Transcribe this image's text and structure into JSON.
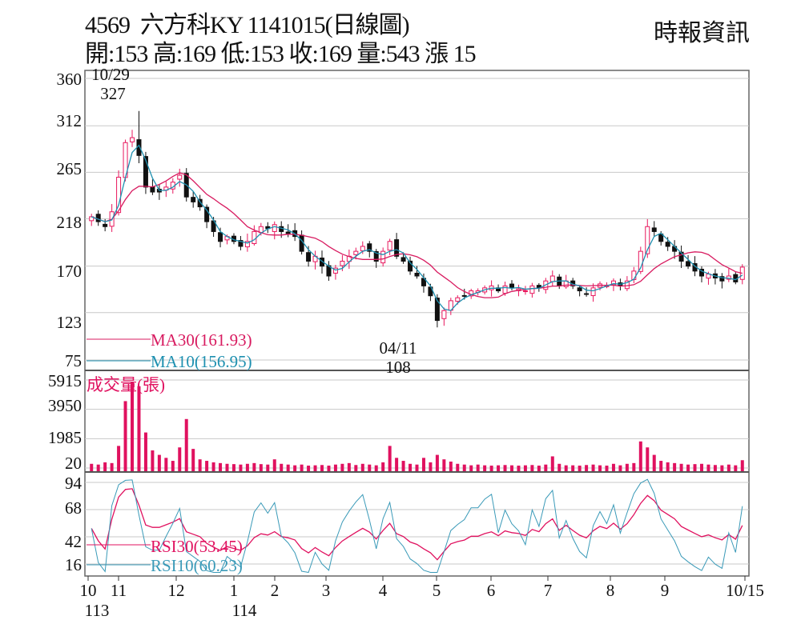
{
  "header": {
    "title": "4569  六方科KY 1141015(日線圖)",
    "ohlc": "開:153 高:169 低:153 收:169 量:543 漲 15",
    "brand": "時報資訊"
  },
  "colors": {
    "up": "#e8175d",
    "down": "#111111",
    "ma30": "#d81b60",
    "ma10": "#1e90b0",
    "volume": "#e0115f",
    "rsi30": "#e0115f",
    "rsi10": "#3a9ab8",
    "grid": "#c8c8c8"
  },
  "chart_data": [
    {
      "type": "candlestick",
      "panel": "price",
      "yticks": [
        "360",
        "312",
        "265",
        "218",
        "170",
        "123",
        "75"
      ],
      "ylim": [
        75,
        360
      ],
      "annotations": {
        "high": {
          "date": "10/29",
          "value": "327"
        },
        "low": {
          "date": "04/11",
          "value": "108"
        }
      },
      "legend": {
        "ma30": "MA30(161.93)",
        "ma10": "MA10(156.95)"
      },
      "closes": [
        220,
        215,
        210,
        225,
        260,
        295,
        300,
        282,
        250,
        245,
        245,
        250,
        255,
        262,
        240,
        235,
        230,
        215,
        205,
        195,
        200,
        195,
        190,
        195,
        205,
        210,
        208,
        212,
        205,
        203,
        200,
        185,
        175,
        180,
        170,
        160,
        168,
        175,
        180,
        185,
        190,
        185,
        175,
        185,
        195,
        180,
        175,
        165,
        160,
        150,
        140,
        115,
        125,
        135,
        138,
        140,
        145,
        145,
        148,
        150,
        145,
        150,
        148,
        147,
        145,
        150,
        148,
        155,
        160,
        150,
        155,
        150,
        145,
        142,
        148,
        152,
        150,
        155,
        150,
        155,
        165,
        185,
        210,
        205,
        195,
        190,
        185,
        175,
        170,
        165,
        160,
        162,
        158,
        155,
        160,
        154,
        169
      ]
    },
    {
      "type": "bar",
      "panel": "volume",
      "title": "成交量(張)",
      "yticks": [
        "5915",
        "3950",
        "1985",
        "20"
      ],
      "ylim": [
        20,
        5915
      ],
      "values": [
        300,
        250,
        400,
        350,
        1500,
        4500,
        5800,
        5500,
        2400,
        1200,
        900,
        700,
        500,
        1400,
        3300,
        1300,
        600,
        500,
        400,
        350,
        300,
        280,
        250,
        300,
        350,
        280,
        250,
        600,
        300,
        250,
        200,
        250,
        180,
        200,
        220,
        180,
        250,
        300,
        350,
        220,
        300,
        250,
        200,
        400,
        1500,
        700,
        500,
        300,
        250,
        700,
        400,
        900,
        600,
        450,
        300,
        250,
        200,
        250,
        200,
        180,
        200,
        220,
        200,
        180,
        200,
        220,
        180,
        250,
        800,
        300,
        200,
        200,
        180,
        220,
        250,
        200,
        180,
        300,
        200,
        300,
        350,
        1800,
        1400,
        900,
        500,
        400,
        350,
        300,
        250,
        280,
        300,
        250,
        220,
        200,
        250,
        200,
        543
      ]
    },
    {
      "type": "line",
      "panel": "rsi",
      "yticks": [
        "94",
        "68",
        "42",
        "16"
      ],
      "ylim": [
        16,
        94
      ],
      "legend": {
        "rsi30": "RSI30(53.45)",
        "rsi10": "RSI10(60.23)"
      }
    }
  ],
  "xaxis": {
    "months": [
      "10",
      "11",
      "12",
      "1",
      "2",
      "3",
      "4",
      "5",
      "6",
      "7",
      "8",
      "9",
      "10/15"
    ],
    "years": [
      "113",
      "114"
    ]
  }
}
